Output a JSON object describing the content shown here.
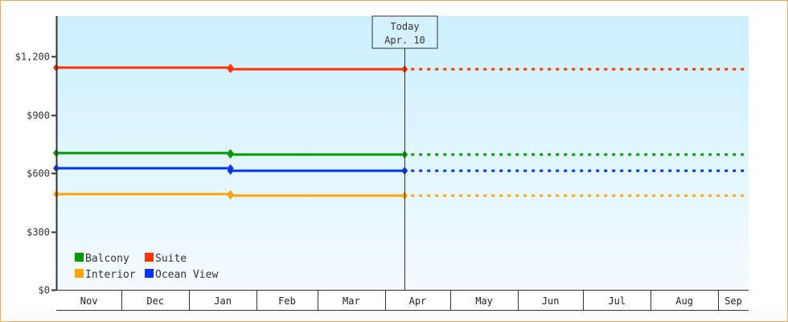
{
  "chart_data": {
    "type": "line",
    "title": "",
    "xlabel": "",
    "ylabel": "",
    "x_axis": {
      "type": "date",
      "months": [
        "Nov",
        "Dec",
        "Jan",
        "Feb",
        "Mar",
        "Apr",
        "May",
        "Jun",
        "Jul",
        "Aug",
        "Sep"
      ],
      "range": [
        "Nov 1",
        "Sep 15"
      ]
    },
    "y_axis": {
      "ticks": [
        0,
        300,
        600,
        900,
        1200
      ],
      "tick_labels": [
        "$0",
        "$300",
        "$600",
        "$900",
        "$1,200"
      ],
      "ylim": [
        0,
        1400
      ]
    },
    "grid": false,
    "background": "light blue vertical gradient",
    "today_marker": {
      "line1": "Today",
      "line2": "Apr. 10",
      "x": "Apr 10"
    },
    "projection": "dashed line from today to end of axis at last value",
    "legend": {
      "placement": "bottom-left",
      "entries": [
        "Balcony",
        "Suite",
        "Interior",
        "Ocean View"
      ]
    },
    "series": [
      {
        "name": "Suite",
        "color": "#ff3300",
        "points": [
          {
            "x": "Nov 1",
            "y": 1142
          },
          {
            "x": "Jan 20",
            "y": 1142
          },
          {
            "x": "Jan 20",
            "y": 1134
          },
          {
            "x": "Apr 10",
            "y": 1134
          }
        ]
      },
      {
        "name": "Balcony",
        "color": "#009900",
        "points": [
          {
            "x": "Nov 1",
            "y": 703
          },
          {
            "x": "Jan 20",
            "y": 703
          },
          {
            "x": "Jan 20",
            "y": 695
          },
          {
            "x": "Apr 10",
            "y": 695
          }
        ]
      },
      {
        "name": "Ocean View",
        "color": "#0033ff",
        "points": [
          {
            "x": "Nov 1",
            "y": 625
          },
          {
            "x": "Jan 20",
            "y": 625
          },
          {
            "x": "Jan 20",
            "y": 612
          },
          {
            "x": "Apr 10",
            "y": 612
          }
        ]
      },
      {
        "name": "Interior",
        "color": "#ffa500",
        "points": [
          {
            "x": "Nov 1",
            "y": 492
          },
          {
            "x": "Jan 20",
            "y": 492
          },
          {
            "x": "Jan 20",
            "y": 484
          },
          {
            "x": "Apr 10",
            "y": 484
          }
        ]
      }
    ]
  }
}
